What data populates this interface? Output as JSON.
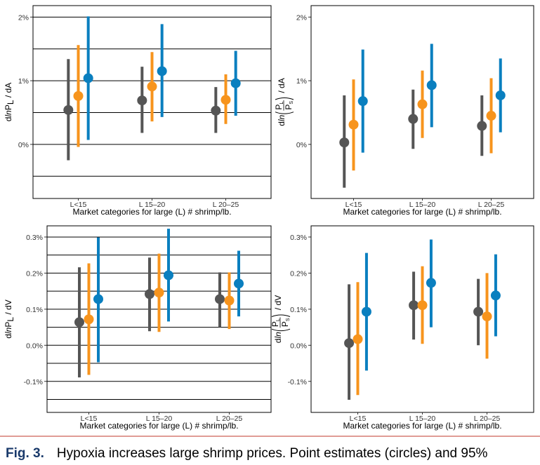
{
  "chart_data": [
    {
      "type": "pointrange",
      "grid": true,
      "ylabel": [
        {
          "text": "d"
        },
        {
          "text": "ln",
          "style": "italic"
        },
        {
          "text": "P"
        },
        {
          "text": "L",
          "style": "sub"
        },
        {
          "text": " / dA"
        }
      ],
      "xlabel": "Market categories for large (L) # shrimp/lb.",
      "categories": [
        "L<15",
        "L 15–20",
        "L 20–25"
      ],
      "ylim": [
        -0.85,
        2.18
      ],
      "yticks": [
        {
          "value": 0,
          "label": "0%"
        },
        {
          "value": 1,
          "label": "1%"
        },
        {
          "value": 2,
          "label": "2%"
        }
      ],
      "minor_gridlines": [
        -0.5,
        0.5,
        1.5
      ],
      "series": [
        {
          "color": "#555555",
          "values": [
            0.54,
            0.69,
            0.53
          ],
          "lower": [
            -0.25,
            0.18,
            0.18
          ],
          "upper": [
            1.34,
            1.22,
            0.9
          ]
        },
        {
          "color": "#f7941d",
          "values": [
            0.76,
            0.91,
            0.7
          ],
          "lower": [
            -0.04,
            0.36,
            0.32
          ],
          "upper": [
            1.56,
            1.45,
            1.1
          ]
        },
        {
          "color": "#0a7fbf",
          "values": [
            1.04,
            1.15,
            0.96
          ],
          "lower": [
            0.07,
            0.43,
            0.45
          ],
          "upper": [
            2.01,
            1.89,
            1.47
          ]
        }
      ]
    },
    {
      "type": "pointrange",
      "grid": false,
      "ylabel": [
        {
          "text": "d"
        },
        {
          "text": "ln",
          "style": "italic"
        },
        {
          "num": "P",
          "num_sub": "L",
          "den": "P",
          "den_sub": "S"
        },
        {
          "text": " / dA"
        }
      ],
      "xlabel": "Market categories for large (L) # shrimp/lb.",
      "categories": [
        "L<15",
        "L 15–20",
        "L 20–25"
      ],
      "ylim": [
        -0.85,
        2.18
      ],
      "yticks": [
        {
          "value": 0,
          "label": "0%"
        },
        {
          "value": 1,
          "label": "1%"
        },
        {
          "value": 2,
          "label": "2%"
        }
      ],
      "series": [
        {
          "color": "#555555",
          "values": [
            0.03,
            0.4,
            0.29
          ],
          "lower": [
            -0.68,
            -0.07,
            -0.18
          ],
          "upper": [
            0.77,
            0.86,
            0.77
          ]
        },
        {
          "color": "#f7941d",
          "values": [
            0.31,
            0.63,
            0.45
          ],
          "lower": [
            -0.41,
            0.1,
            -0.14
          ],
          "upper": [
            1.02,
            1.16,
            1.04
          ]
        },
        {
          "color": "#0a7fbf",
          "values": [
            0.68,
            0.93,
            0.77
          ],
          "lower": [
            -0.13,
            0.27,
            0.19
          ],
          "upper": [
            1.49,
            1.58,
            1.35
          ]
        }
      ]
    },
    {
      "type": "pointrange",
      "grid": true,
      "ylabel": [
        {
          "text": "d"
        },
        {
          "text": "ln",
          "style": "italic"
        },
        {
          "text": "P"
        },
        {
          "text": "L",
          "style": "sub"
        },
        {
          "text": " / dV"
        }
      ],
      "xlabel": "Market categories for large (L) # shrimp/lb.",
      "categories": [
        "L<15",
        "L 15–20",
        "L 20–25"
      ],
      "ylim": [
        -0.186,
        0.331
      ],
      "yticks": [
        {
          "value": -0.1,
          "label": "-0.1%"
        },
        {
          "value": 0,
          "label": "0.0%"
        },
        {
          "value": 0.1,
          "label": "0.1%"
        },
        {
          "value": 0.2,
          "label": "0.2%"
        },
        {
          "value": 0.3,
          "label": "0.3%"
        }
      ],
      "minor_gridlines": [
        -0.15,
        -0.05,
        0.05,
        0.15,
        0.25
      ],
      "series": [
        {
          "color": "#555555",
          "values": [
            0.064,
            0.142,
            0.128
          ],
          "lower": [
            -0.089,
            0.039,
            0.05
          ],
          "upper": [
            0.216,
            0.243,
            0.202
          ]
        },
        {
          "color": "#f7941d",
          "values": [
            0.072,
            0.146,
            0.124
          ],
          "lower": [
            -0.082,
            0.037,
            0.045
          ],
          "upper": [
            0.227,
            0.254,
            0.202
          ]
        },
        {
          "color": "#0a7fbf",
          "values": [
            0.128,
            0.194,
            0.171
          ],
          "lower": [
            -0.047,
            0.066,
            0.08
          ],
          "upper": [
            0.299,
            0.323,
            0.262
          ]
        }
      ]
    },
    {
      "type": "pointrange",
      "grid": false,
      "ylabel": [
        {
          "text": "d"
        },
        {
          "text": "ln",
          "style": "italic"
        },
        {
          "num": "P",
          "num_sub": "L",
          "den": "P",
          "den_sub": "S"
        },
        {
          "text": " / dV"
        }
      ],
      "xlabel": "Market categories for large (L) # shrimp/lb.",
      "categories": [
        "L<15",
        "L 15–20",
        "L 20–25"
      ],
      "ylim": [
        -0.186,
        0.331
      ],
      "yticks": [
        {
          "value": -0.1,
          "label": "-0.1%"
        },
        {
          "value": 0,
          "label": "0.0%"
        },
        {
          "value": 0.1,
          "label": "0.1%"
        },
        {
          "value": 0.2,
          "label": "0.2%"
        },
        {
          "value": 0.3,
          "label": "0.3%"
        }
      ],
      "series": [
        {
          "color": "#555555",
          "values": [
            0.006,
            0.111,
            0.093
          ],
          "lower": [
            -0.151,
            0.016,
            0.0
          ],
          "upper": [
            0.169,
            0.204,
            0.184
          ]
        },
        {
          "color": "#f7941d",
          "values": [
            0.017,
            0.111,
            0.08
          ],
          "lower": [
            -0.138,
            0.004,
            -0.037
          ],
          "upper": [
            0.175,
            0.219,
            0.2
          ]
        },
        {
          "color": "#0a7fbf",
          "values": [
            0.093,
            0.173,
            0.138
          ],
          "lower": [
            -0.07,
            0.05,
            0.025
          ],
          "upper": [
            0.256,
            0.293,
            0.252
          ]
        }
      ]
    }
  ],
  "caption": {
    "label": "Fig. 3.",
    "text": "Hypoxia increases large shrimp prices. Point estimates (circles) and 95%"
  }
}
